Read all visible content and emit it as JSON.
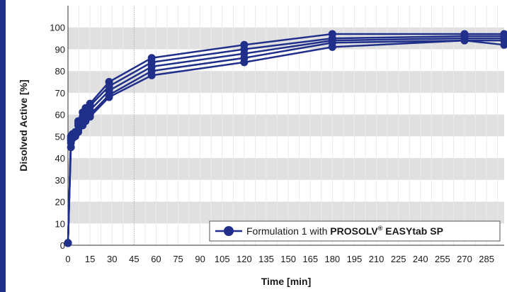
{
  "chart_data": {
    "type": "line",
    "xlabel": "Time [min]",
    "ylabel": "Disolved Active  [%]",
    "xlim": [
      0,
      297
    ],
    "ylim": [
      0,
      110
    ],
    "x_ticks": [
      0,
      15,
      30,
      45,
      60,
      75,
      90,
      105,
      120,
      135,
      150,
      165,
      180,
      195,
      210,
      225,
      240,
      255,
      270,
      285
    ],
    "x_tick_labels": [
      "0",
      "15",
      "30",
      "45",
      "60",
      "75",
      "90",
      "105",
      "120",
      "135",
      "150",
      "165",
      "180",
      "195",
      "210",
      "225",
      "240",
      "255",
      "270",
      "285"
    ],
    "y_ticks": [
      0,
      10,
      20,
      30,
      40,
      50,
      60,
      70,
      80,
      90,
      100
    ],
    "y_tick_labels": [
      "0",
      "10",
      "20",
      "30",
      "40",
      "50",
      "60",
      "70",
      "80",
      "90",
      "100"
    ],
    "grid": "vertical lines and alternating horizontal bands",
    "highlight_x_line": 45,
    "legend": {
      "position": "bottom-right",
      "label_prefix": "Formulation 1 with ",
      "label_bold": "PROSOLV",
      "label_sup": "®",
      "label_bold2": " EASYtab SP"
    },
    "colors": {
      "series": "#1f2f8a",
      "band": "#e0e0e0",
      "grid": "#c8c8c8",
      "left_bar": "#1f2f8a"
    },
    "x": [
      0,
      2,
      3,
      5,
      7,
      10,
      12,
      15,
      28,
      57,
      120,
      180,
      270,
      297
    ],
    "series": [
      {
        "values": [
          1,
          45,
          49,
          51,
          56,
          59,
          63,
          65,
          75,
          86,
          92,
          97,
          97,
          97
        ]
      },
      {
        "values": [
          1,
          48,
          50,
          52,
          57,
          61,
          62,
          64,
          73,
          84,
          90,
          95,
          96,
          96
        ]
      },
      {
        "values": [
          1,
          50,
          51,
          52,
          55,
          58,
          61,
          62,
          71,
          82,
          88,
          94,
          95,
          95
        ]
      },
      {
        "values": [
          1,
          49,
          50,
          51,
          53,
          56,
          58,
          60,
          69,
          80,
          86,
          93,
          94,
          94
        ]
      },
      {
        "values": [
          1,
          47,
          49,
          50,
          52,
          55,
          57,
          59,
          68,
          78,
          84,
          91,
          94,
          92
        ]
      }
    ]
  }
}
